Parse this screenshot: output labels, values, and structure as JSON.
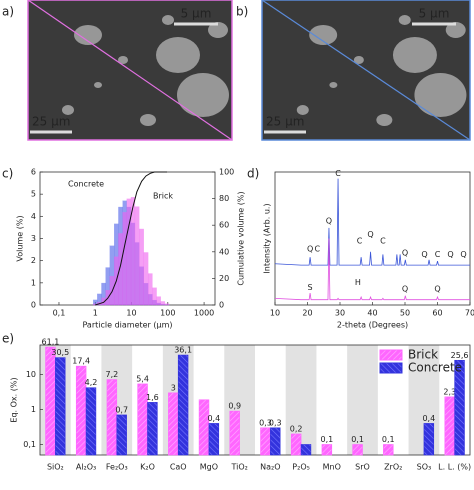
{
  "images": [
    {
      "label": "a)",
      "scale_top": "5 μm",
      "scale_bottom": "25 μm"
    },
    {
      "label": "b)",
      "scale_top": "5 μm",
      "scale_bottom": "25 μm"
    }
  ],
  "chart_data": [
    {
      "type": "bar",
      "panel": "c)",
      "x_label": "Particle diameter (μm)",
      "y_label": "Volume (%)",
      "y2_label": "Cumulative volume (%)",
      "log_x": true,
      "x": [
        1,
        1.3,
        1.7,
        2.2,
        2.9,
        3.8,
        5,
        6.5,
        8.5,
        11,
        14,
        19,
        25,
        33,
        43,
        56,
        73,
        95
      ],
      "series": [
        {
          "name": "Concrete",
          "color": "#4a5fe8",
          "values": [
            0.23,
            0.5,
            0.99,
            1.69,
            2.67,
            3.66,
            4.42,
            4.7,
            4.42,
            3.7,
            2.82,
            1.73,
            0.98,
            0.48,
            0.22,
            0.09,
            0.03,
            0.01
          ]
        },
        {
          "name": "Brick",
          "color": "#f060f0",
          "values": [
            0.05,
            0.13,
            0.32,
            0.67,
            1.3,
            2.18,
            3.23,
            4.18,
            4.79,
            4.86,
            4.44,
            3.43,
            2.37,
            1.42,
            0.78,
            0.38,
            0.16,
            0.06
          ]
        },
        {
          "color": "#111111",
          "axis": "y2",
          "values": [
            0,
            1,
            2,
            5,
            10,
            18,
            30,
            45,
            60,
            74,
            85,
            93,
            97,
            99,
            100,
            100,
            100,
            100
          ]
        }
      ],
      "xlim": [
        0.03,
        2000
      ],
      "xticks": [
        {
          "value": 0.1,
          "label": "0,1"
        },
        1,
        10,
        100,
        1000
      ],
      "ylim": [
        0,
        6
      ],
      "yticks": [
        0,
        1,
        2,
        3,
        4,
        5,
        6
      ],
      "y2lim": [
        0,
        100
      ],
      "y2ticks": [
        0,
        20,
        40,
        60,
        80,
        100
      ]
    },
    {
      "type": "line",
      "panel": "d)",
      "x_label": "2-theta (Degrees)",
      "y_label": "Intensity (Arb. u.)",
      "x": [
        10,
        18,
        20.5,
        20.8,
        21.1,
        23,
        26.3,
        26.6,
        26.9,
        29.1,
        29.4,
        29.7,
        36.2,
        36.5,
        36.8,
        39.1,
        39.4,
        39.7,
        42.9,
        43.2,
        43.5,
        47.2,
        47.5,
        47.8,
        48.2,
        48.5,
        48.8,
        49.8,
        50.1,
        50.4,
        57.1,
        57.4,
        57.7,
        59.7,
        60,
        60.3,
        70
      ],
      "series": [
        {
          "color": "#3a55d8",
          "values": [
            31,
            30,
            30,
            36,
            30,
            30,
            30,
            58,
            30,
            30,
            95,
            30,
            30,
            36,
            30,
            30,
            40,
            30,
            30,
            38,
            30,
            30,
            38,
            30,
            30,
            38,
            30,
            30,
            34,
            30,
            30,
            34,
            30,
            30,
            33,
            30,
            30
          ]
        },
        {
          "color": "#e050e0",
          "values": [
            5,
            4,
            4,
            9,
            4,
            4,
            4,
            50,
            4,
            4,
            5,
            4,
            4,
            6,
            4,
            4,
            6,
            4,
            4,
            5,
            4,
            4,
            4,
            4,
            4,
            4,
            4,
            4,
            7,
            4,
            4,
            4,
            4,
            4,
            6,
            4,
            4
          ]
        }
      ],
      "xlim": [
        10,
        70
      ],
      "xticks": [
        10,
        20,
        30,
        40,
        50,
        60,
        70
      ],
      "ylim": [
        0,
        100
      ],
      "annotations": [
        {
          "text": "Q",
          "x": 26.6,
          "y": 63
        },
        {
          "text": "C",
          "x": 29.4,
          "y": 99
        },
        {
          "text": "Q",
          "x": 20.8,
          "y": 42
        },
        {
          "text": "C",
          "x": 23,
          "y": 42
        },
        {
          "text": "C",
          "x": 36,
          "y": 48
        },
        {
          "text": "Q",
          "x": 39.4,
          "y": 53
        },
        {
          "text": "C",
          "x": 43.2,
          "y": 48
        },
        {
          "text": "Q",
          "x": 50,
          "y": 39
        },
        {
          "text": "Q",
          "x": 56,
          "y": 38
        },
        {
          "text": "C",
          "x": 60,
          "y": 38
        },
        {
          "text": "Q",
          "x": 64,
          "y": 38
        },
        {
          "text": "Q",
          "x": 68,
          "y": 38
        },
        {
          "text": "S",
          "x": 20.8,
          "y": 13
        },
        {
          "text": "H",
          "x": 35.5,
          "y": 17
        },
        {
          "text": "Q",
          "x": 50,
          "y": 12
        },
        {
          "text": "Q",
          "x": 60,
          "y": 12
        }
      ]
    },
    {
      "type": "bar",
      "panel": "e)",
      "y_label": "Eq. Ox. (%)",
      "log_y": true,
      "legend": "upper right",
      "categories": [
        "SiO₂",
        "Al₂O₃",
        "Fe₂O₃",
        "K₂O",
        "CaO",
        "MgO",
        "TiO₂",
        "Na₂O",
        "P₂O₅",
        "MnO",
        "SrO",
        "ZrO₂",
        "SO₃",
        "L. L. (%)"
      ],
      "series": [
        {
          "name": "Brick",
          "color": "#ff66ff",
          "values": [
            61.1,
            17.4,
            7.2,
            5.4,
            3,
            1.9,
            0.9,
            0.3,
            0.2,
            0.1,
            0.1,
            0.1,
            null,
            2.3
          ],
          "value_labels": [
            "61,1",
            "17,4",
            "7,2",
            "5,4",
            "3",
            null,
            "0,9",
            "0,3",
            "0,2",
            "0,1",
            "0,1",
            "0,1",
            null,
            "2,3"
          ]
        },
        {
          "name": "Concrete",
          "color": "#3333dd",
          "values": [
            30.5,
            4.2,
            0.7,
            1.6,
            36.1,
            0.4,
            null,
            0.3,
            0.1,
            null,
            null,
            null,
            0.4,
            25.6
          ],
          "value_labels": [
            "30,5",
            "4,2",
            "0,7",
            "1,6",
            "36,1",
            "0,4",
            null,
            "0,3",
            null,
            null,
            null,
            null,
            "0,4",
            "25,6"
          ]
        }
      ],
      "ylim": [
        0.05,
        70
      ],
      "yticks": [
        {
          "value": 0.1,
          "label": "0,1"
        },
        1,
        10
      ]
    }
  ]
}
